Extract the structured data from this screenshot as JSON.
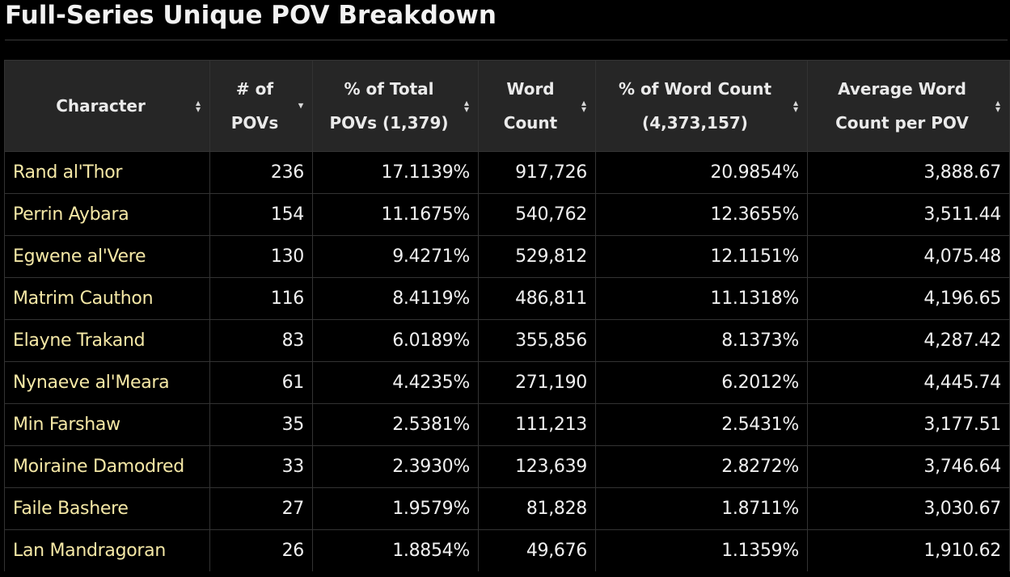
{
  "page": {
    "title": "Full-Series Unique POV Breakdown"
  },
  "table": {
    "columns": [
      {
        "key": "character",
        "label": "Character",
        "sort": "both"
      },
      {
        "key": "povs",
        "label": "# of POVs",
        "sort": "desc"
      },
      {
        "key": "pct_povs",
        "label": "% of Total POVs (1,379)",
        "sort": "both"
      },
      {
        "key": "word_count",
        "label": "Word Count",
        "sort": "both"
      },
      {
        "key": "pct_words",
        "label": "% of Word Count (4,373,157)",
        "sort": "both"
      },
      {
        "key": "avg_words",
        "label": "Average Word Count per POV",
        "sort": "both"
      }
    ],
    "rows": [
      {
        "character": "Rand al'Thor",
        "povs": "236",
        "pct_povs": "17.1139%",
        "word_count": "917,726",
        "pct_words": "20.9854%",
        "avg_words": "3,888.67"
      },
      {
        "character": "Perrin Aybara",
        "povs": "154",
        "pct_povs": "11.1675%",
        "word_count": "540,762",
        "pct_words": "12.3655%",
        "avg_words": "3,511.44"
      },
      {
        "character": "Egwene al'Vere",
        "povs": "130",
        "pct_povs": "9.4271%",
        "word_count": "529,812",
        "pct_words": "12.1151%",
        "avg_words": "4,075.48"
      },
      {
        "character": "Matrim Cauthon",
        "povs": "116",
        "pct_povs": "8.4119%",
        "word_count": "486,811",
        "pct_words": "11.1318%",
        "avg_words": "4,196.65"
      },
      {
        "character": "Elayne Trakand",
        "povs": "83",
        "pct_povs": "6.0189%",
        "word_count": "355,856",
        "pct_words": "8.1373%",
        "avg_words": "4,287.42"
      },
      {
        "character": "Nynaeve al'Meara",
        "povs": "61",
        "pct_povs": "4.4235%",
        "word_count": "271,190",
        "pct_words": "6.2012%",
        "avg_words": "4,445.74"
      },
      {
        "character": "Min Farshaw",
        "povs": "35",
        "pct_povs": "2.5381%",
        "word_count": "111,213",
        "pct_words": "2.5431%",
        "avg_words": "3,177.51"
      },
      {
        "character": "Moiraine Damodred",
        "povs": "33",
        "pct_povs": "2.3930%",
        "word_count": "123,639",
        "pct_words": "2.8272%",
        "avg_words": "3,746.64"
      },
      {
        "character": "Faile Bashere",
        "povs": "27",
        "pct_povs": "1.9579%",
        "word_count": "81,828",
        "pct_words": "1.8711%",
        "avg_words": "3,030.67"
      },
      {
        "character": "Lan Mandragoran",
        "povs": "26",
        "pct_povs": "1.8854%",
        "word_count": "49,676",
        "pct_words": "1.1359%",
        "avg_words": "1,910.62"
      }
    ]
  },
  "icons": {
    "sort_both": "sort-icon",
    "sort_desc": "sort-descending-icon"
  }
}
